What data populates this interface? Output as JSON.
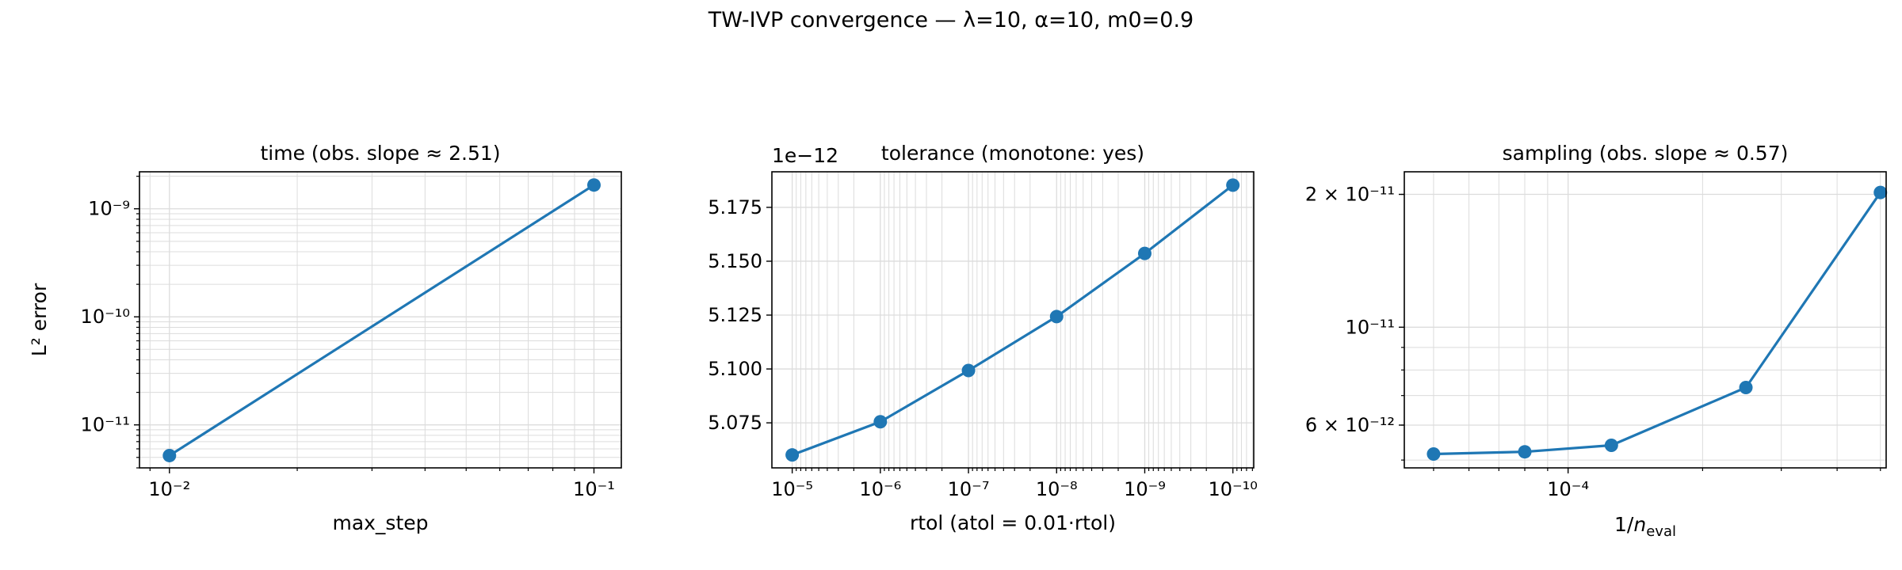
{
  "figure": {
    "suptitle": "TW-IVP convergence — λ=10, α=10, m0=0.9"
  },
  "colors": {
    "series": "#1f77b4",
    "grid": "#dcdcdc",
    "axes": "#000000"
  },
  "chart_data": [
    {
      "type": "line",
      "title": "time (obs. slope ≈ 2.51)",
      "xlabel": "max_step",
      "ylabel": "L² error",
      "xscale": "log",
      "yscale": "log",
      "xlim": [
        0.0085,
        0.116
      ],
      "ylim": [
        4e-12,
        2.2e-09
      ],
      "grid": true,
      "x": [
        0.01,
        0.1
      ],
      "y": [
        5.2e-12,
        1.66e-09
      ],
      "x_ticks": [
        {
          "value": 0.01,
          "label": "10⁻²"
        },
        {
          "value": 0.1,
          "label": "10⁻¹"
        }
      ],
      "y_ticks": [
        {
          "value": 1e-11,
          "label": "10⁻¹¹"
        },
        {
          "value": 1e-10,
          "label": "10⁻¹⁰"
        },
        {
          "value": 1e-09,
          "label": "10⁻⁹"
        }
      ]
    },
    {
      "type": "line",
      "title": "tolerance (monotone: yes)",
      "xlabel": "rtol (atol = 0.01·rtol)",
      "ylabel": "",
      "offset_text": "1e−12",
      "xscale": "log",
      "x_inverted": true,
      "yscale": "linear",
      "xlim": [
        1.7e-05,
        5.8e-11
      ],
      "ylim": [
        5.0541,
        5.1915
      ],
      "grid": true,
      "x": [
        1e-05,
        1e-06,
        1e-07,
        1e-08,
        1e-09,
        1e-10
      ],
      "y": [
        5.0601,
        5.0755,
        5.0993,
        5.1243,
        5.1536,
        5.1853
      ],
      "x_ticks": [
        {
          "value": 1e-05,
          "label": "10⁻⁵"
        },
        {
          "value": 1e-06,
          "label": "10⁻⁶"
        },
        {
          "value": 1e-07,
          "label": "10⁻⁷"
        },
        {
          "value": 1e-08,
          "label": "10⁻⁸"
        },
        {
          "value": 1e-09,
          "label": "10⁻⁹"
        },
        {
          "value": 1e-10,
          "label": "10⁻¹⁰"
        }
      ],
      "y_ticks": [
        {
          "value": 5.075,
          "label": "5.075"
        },
        {
          "value": 5.1,
          "label": "5.100"
        },
        {
          "value": 5.125,
          "label": "5.125"
        },
        {
          "value": 5.15,
          "label": "5.150"
        },
        {
          "value": 5.175,
          "label": "5.175"
        }
      ]
    },
    {
      "type": "line",
      "title": "sampling (obs. slope ≈ 0.57)",
      "xlabel": "1/n_eval",
      "ylabel": "",
      "xscale": "log",
      "yscale": "log",
      "xlim": [
        4.3e-05,
        0.000515
      ],
      "ylim": [
        4.8e-12,
        2.25e-11
      ],
      "grid": true,
      "x": [
        5e-05,
        8e-05,
        0.000125,
        0.00025,
        0.0005
      ],
      "y": [
        5.16e-12,
        5.22e-12,
        5.4e-12,
        7.3e-12,
        2.02e-11
      ],
      "x_ticks": [
        {
          "value": 0.0001,
          "label": "10⁻⁴"
        }
      ],
      "y_ticks": [
        {
          "value": 6e-12,
          "label": "6 × 10⁻¹²"
        },
        {
          "value": 1e-11,
          "label": "10⁻¹¹"
        },
        {
          "value": 2e-11,
          "label": "2 × 10⁻¹¹"
        }
      ]
    }
  ]
}
